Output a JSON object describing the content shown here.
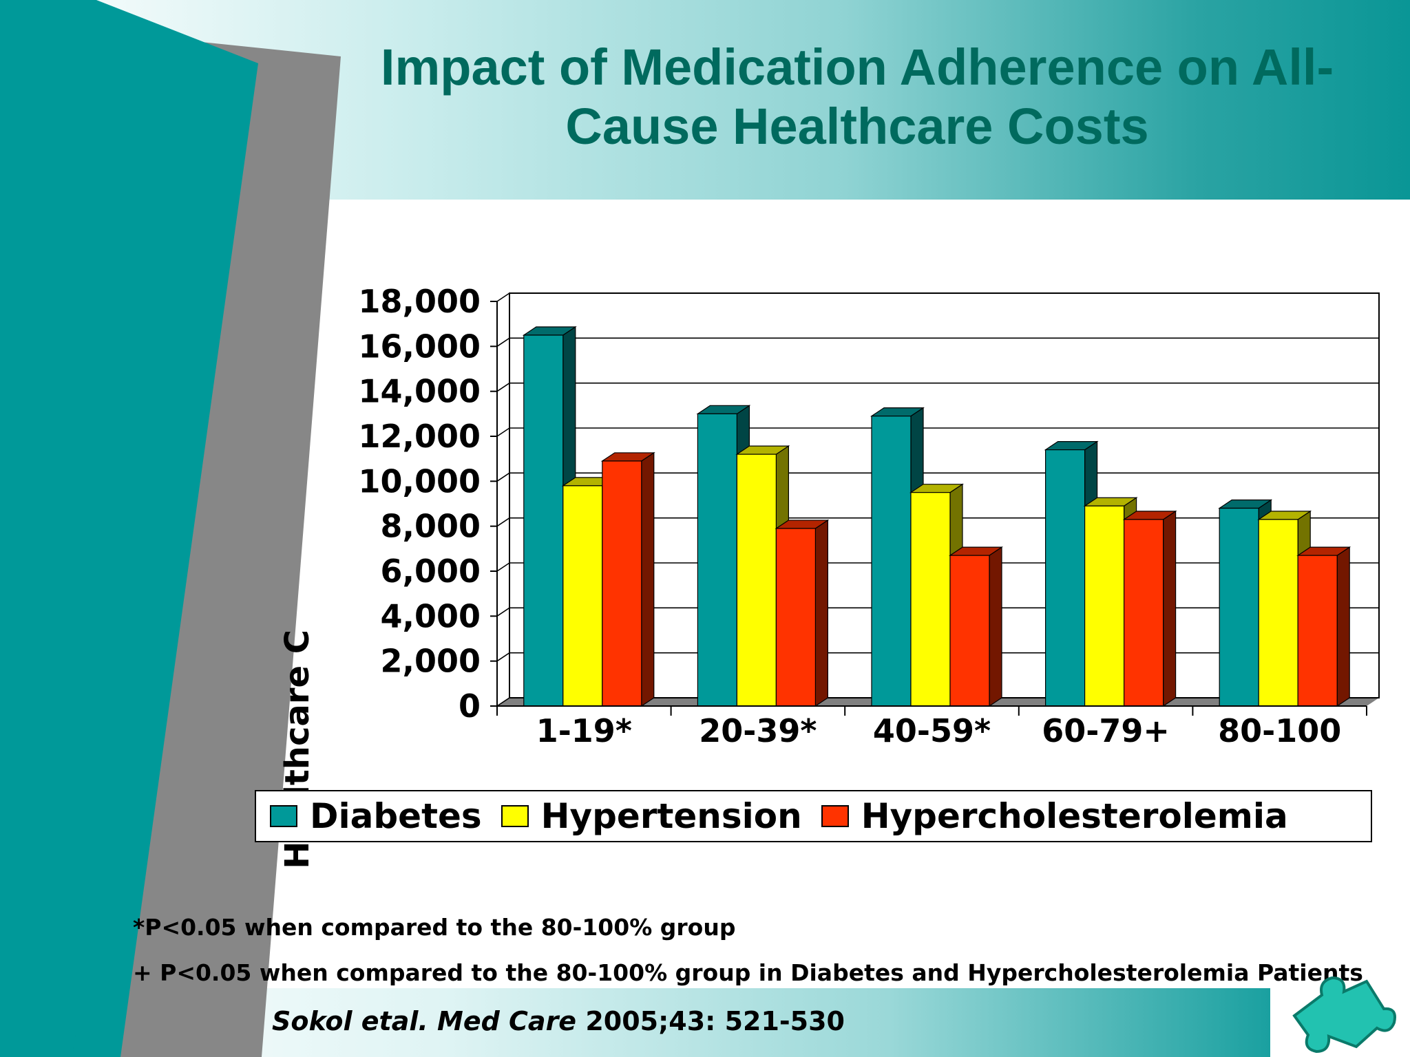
{
  "slide": {
    "title": "Impact of Medication Adherence on All-Cause Healthcare Costs",
    "notes": [
      "*P<0.05 when compared to the 80-100% group",
      "+ P<0.05 when compared to the 80-100% group in Diabetes and Hypercholesterolemia Patients"
    ],
    "citation_italic": "Sokol etal. Med Care",
    "citation_rest": " 2005;43: 521-530",
    "colors": {
      "teal": "#009999",
      "title": "#006a5e",
      "yellow": "#ffff00",
      "red": "#ff3300"
    },
    "icons": [
      "puzzle-piece-icon"
    ]
  },
  "chart_data": {
    "type": "bar",
    "ylabel": "Healthcare C",
    "ylim": [
      0,
      18000
    ],
    "yticks": [
      "0",
      "2,000",
      "4,000",
      "6,000",
      "8,000",
      "10,000",
      "12,000",
      "14,000",
      "16,000",
      "18,000"
    ],
    "categories": [
      "1-19*",
      "20-39*",
      "40-59*",
      "60-79+",
      "80-100"
    ],
    "series": [
      {
        "name": "Diabetes",
        "color": "#009999",
        "values": [
          16500,
          13000,
          12900,
          11400,
          8800
        ]
      },
      {
        "name": "Hypertension",
        "color": "#ffff00",
        "values": [
          9800,
          11200,
          9500,
          8900,
          8300
        ]
      },
      {
        "name": "Hypercholesterolemia",
        "color": "#ff3300",
        "values": [
          10900,
          7900,
          6700,
          8300,
          6700
        ]
      }
    ],
    "grid": true,
    "legend": "bottom"
  }
}
